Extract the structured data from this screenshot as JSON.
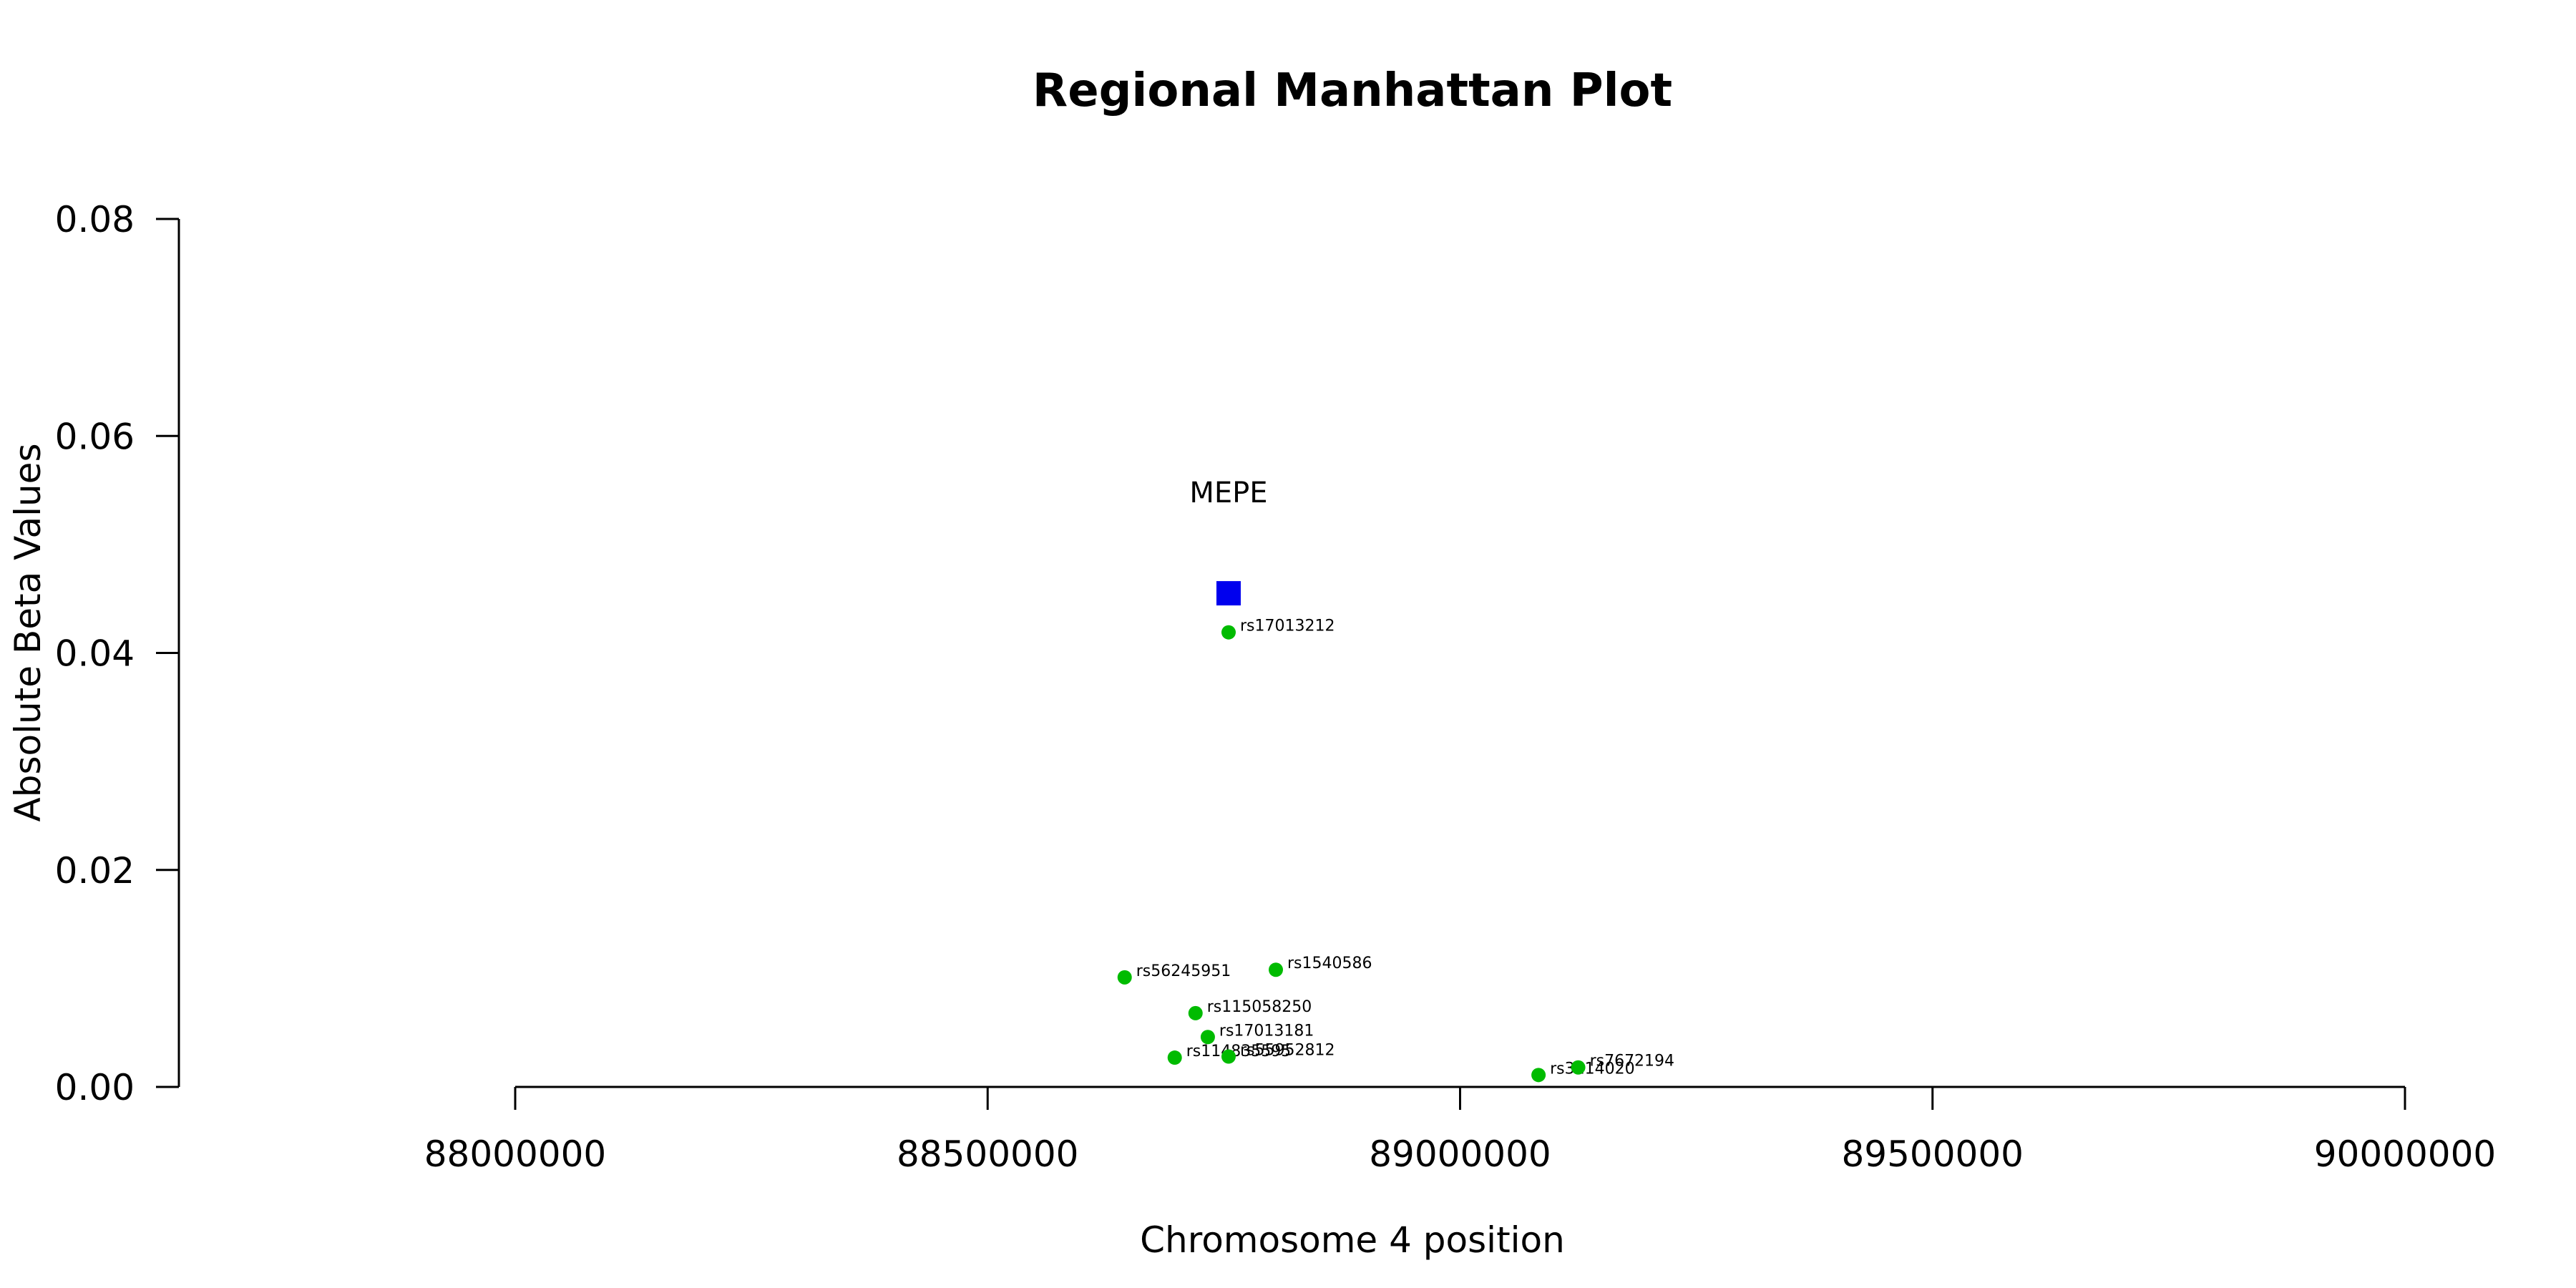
{
  "chart_data": {
    "type": "scatter",
    "title": "Regional Manhattan Plot",
    "xlabel": "Chromosome 4 position",
    "ylabel": "Absolute Beta Values",
    "xlim": [
      88000000,
      90000000
    ],
    "ylim": [
      0,
      0.08
    ],
    "x_ticks": [
      "88000000",
      "88500000",
      "89000000",
      "89500000",
      "90000000"
    ],
    "y_ticks": [
      "0.00",
      "0.02",
      "0.04",
      "0.06",
      "0.08"
    ],
    "grid": false,
    "gene_marker": {
      "name": "MEPE",
      "x": 88755000,
      "y": 0.0455,
      "color": "#0000ee",
      "shape": "square"
    },
    "series": [
      {
        "color": "#00bb00",
        "points": [
          {
            "label": "rs17013212",
            "x": 88755000,
            "y": 0.0419
          },
          {
            "label": "rs1540586",
            "x": 88805000,
            "y": 0.0108
          },
          {
            "label": "rs56245951",
            "x": 88645000,
            "y": 0.0101
          },
          {
            "label": "rs115058250",
            "x": 88720000,
            "y": 0.0068
          },
          {
            "label": "rs17013181",
            "x": 88733000,
            "y": 0.0046
          },
          {
            "label": "rs114835595",
            "x": 88698000,
            "y": 0.0027
          },
          {
            "label": "rs55952812",
            "x": 88755000,
            "y": 0.0028
          },
          {
            "label": "rs3114020",
            "x": 89083000,
            "y": 0.0011
          },
          {
            "label": "rs7672194",
            "x": 89125000,
            "y": 0.0018
          }
        ]
      }
    ]
  }
}
